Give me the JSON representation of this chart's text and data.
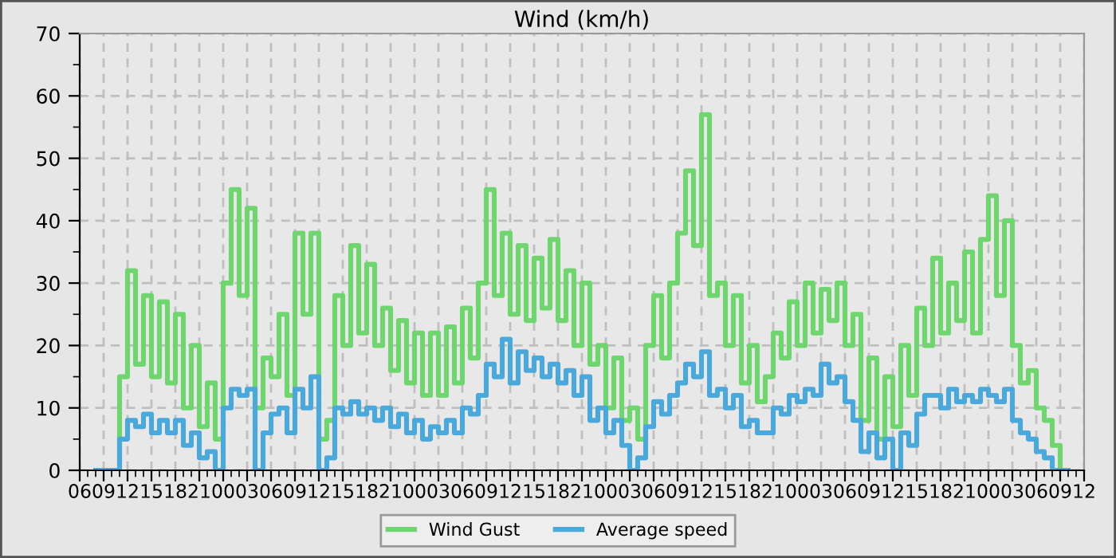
{
  "chart_data": {
    "type": "step",
    "title": "Wind (km/h)",
    "categories": [
      "06",
      null,
      null,
      "09",
      null,
      null,
      "12",
      null,
      null,
      "15",
      null,
      null,
      "18",
      null,
      null,
      "21",
      null,
      null,
      "00",
      null,
      null,
      "03",
      null,
      null,
      "06",
      null,
      null,
      "09",
      null,
      null,
      "12",
      null,
      null,
      "15",
      null,
      null,
      "18",
      null,
      null,
      "21",
      null,
      null,
      "00",
      null,
      null,
      "03",
      null,
      null,
      "06",
      null,
      null,
      "09",
      null,
      null,
      "12",
      null,
      null,
      "15",
      null,
      null,
      "18",
      null,
      null,
      "21",
      null,
      null,
      "00",
      null,
      null,
      "03",
      null,
      null,
      "06",
      null,
      null,
      "09",
      null,
      null,
      "12",
      null,
      null,
      "15",
      null,
      null,
      "18",
      null,
      null,
      "21",
      null,
      null,
      "00",
      null,
      null,
      "03",
      null,
      null,
      "06",
      null,
      null,
      "09",
      null,
      null,
      "12",
      null,
      null,
      "15",
      null,
      null,
      "18",
      null,
      null,
      "21",
      null,
      null,
      "00",
      null,
      null,
      "03",
      null,
      null,
      "06",
      null,
      null,
      "09",
      null,
      null,
      "12"
    ],
    "series": [
      {
        "name": "Wind Gust",
        "color": "#6fd66f",
        "values": [
          null,
          null,
          null,
          null,
          0,
          15,
          32,
          17,
          28,
          15,
          27,
          14,
          25,
          10,
          20,
          7,
          14,
          5,
          30,
          45,
          28,
          42,
          10,
          18,
          15,
          25,
          12,
          38,
          25,
          38,
          5,
          8,
          28,
          20,
          36,
          22,
          33,
          20,
          26,
          16,
          24,
          14,
          22,
          12,
          22,
          12,
          23,
          14,
          26,
          18,
          30,
          45,
          28,
          38,
          25,
          36,
          24,
          34,
          26,
          37,
          24,
          32,
          20,
          30,
          17,
          20,
          10,
          18,
          8,
          10,
          5,
          20,
          28,
          18,
          30,
          38,
          48,
          36,
          57,
          28,
          30,
          20,
          28,
          14,
          20,
          11,
          15,
          22,
          18,
          27,
          20,
          30,
          22,
          29,
          24,
          30,
          20,
          25,
          8,
          18,
          5,
          15,
          7,
          20,
          12,
          26,
          20,
          34,
          22,
          30,
          24,
          35,
          22,
          37,
          44,
          28,
          40,
          20,
          14,
          16,
          10,
          8,
          4,
          0,
          0,
          null,
          null
        ]
      },
      {
        "name": "Average speed",
        "color": "#4ba8da",
        "values": [
          null,
          null,
          0,
          0,
          0,
          5,
          8,
          7,
          9,
          6,
          8,
          6,
          8,
          4,
          6,
          2,
          3,
          0,
          10,
          13,
          12,
          13,
          0,
          6,
          9,
          10,
          6,
          13,
          10,
          15,
          0,
          2,
          10,
          9,
          11,
          9,
          10,
          8,
          10,
          7,
          9,
          6,
          8,
          5,
          7,
          6,
          8,
          6,
          10,
          9,
          12,
          17,
          15,
          21,
          14,
          19,
          16,
          18,
          15,
          17,
          14,
          16,
          12,
          15,
          8,
          10,
          6,
          8,
          4,
          0,
          2,
          7,
          11,
          9,
          12,
          14,
          17,
          15,
          19,
          12,
          13,
          10,
          12,
          7,
          8,
          6,
          6,
          10,
          9,
          12,
          11,
          13,
          12,
          17,
          14,
          15,
          11,
          8,
          3,
          6,
          2,
          5,
          0,
          6,
          4,
          9,
          12,
          12,
          10,
          13,
          11,
          12,
          11,
          13,
          12,
          11,
          13,
          8,
          6,
          5,
          3,
          2,
          0,
          0,
          0,
          null,
          null
        ]
      }
    ],
    "ylim": [
      0,
      70
    ],
    "yticks": [
      0,
      {
        "value": 5,
        "label": null
      },
      10,
      {
        "value": 15,
        "label": null
      },
      20,
      {
        "value": 25,
        "label": null
      },
      30,
      {
        "value": 35,
        "label": null
      },
      40,
      {
        "value": 45,
        "label": null
      },
      50,
      {
        "value": 55,
        "label": null
      },
      60,
      {
        "value": 65,
        "label": null
      },
      70
    ],
    "grid": true,
    "legend": "bottom",
    "line_style": "solid",
    "marker": "none"
  }
}
